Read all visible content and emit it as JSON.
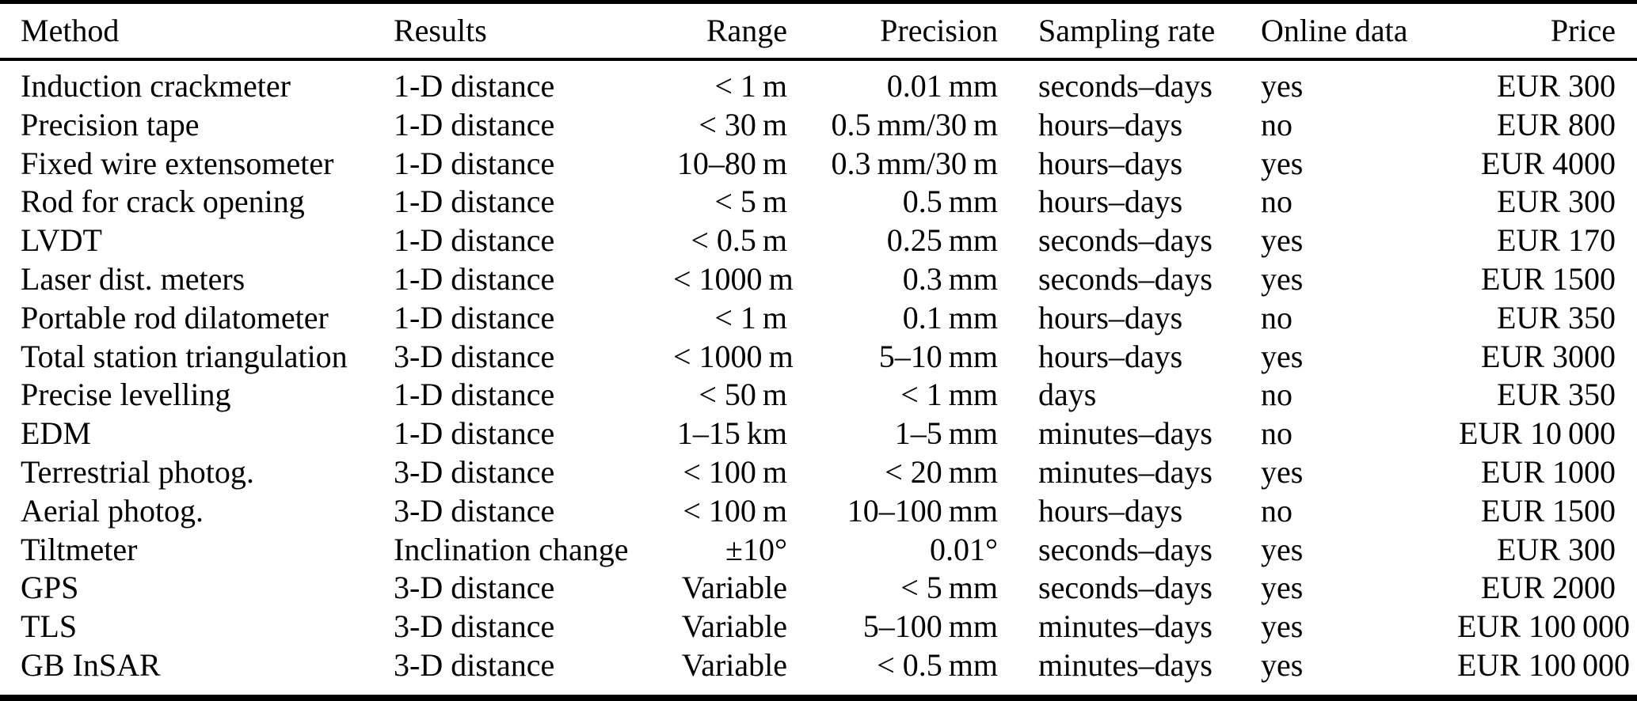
{
  "colors": {
    "text": "#000000",
    "background": "#ffffff",
    "rule": "#000000"
  },
  "table": {
    "columns": [
      {
        "id": "method",
        "label": "Method",
        "align": "left"
      },
      {
        "id": "results",
        "label": "Results",
        "align": "left"
      },
      {
        "id": "range",
        "label": "Range",
        "align": "right"
      },
      {
        "id": "precision",
        "label": "Precision",
        "align": "right"
      },
      {
        "id": "sampling_rate",
        "label": "Sampling rate",
        "align": "left"
      },
      {
        "id": "online_data",
        "label": "Online data",
        "align": "left"
      },
      {
        "id": "price",
        "label": "Price",
        "align": "right"
      }
    ],
    "rows": [
      {
        "method": "Induction crackmeter",
        "results": "1-D distance",
        "range": "< 1 m",
        "precision": "0.01 mm",
        "sampling_rate": "seconds–days",
        "online_data": "yes",
        "price": "EUR 300"
      },
      {
        "method": "Precision tape",
        "results": "1-D distance",
        "range": "< 30 m",
        "precision": "0.5 mm/30 m",
        "sampling_rate": "hours–days",
        "online_data": "no",
        "price": "EUR 800"
      },
      {
        "method": "Fixed wire extensometer",
        "results": "1-D distance",
        "range": "10–80 m",
        "precision": "0.3 mm/30 m",
        "sampling_rate": "hours–days",
        "online_data": "yes",
        "price": "EUR 4000"
      },
      {
        "method": "Rod for crack opening",
        "results": "1-D distance",
        "range": "< 5 m",
        "precision": "0.5 mm",
        "sampling_rate": "hours–days",
        "online_data": "no",
        "price": "EUR 300"
      },
      {
        "method": "LVDT",
        "results": "1-D distance",
        "range": "< 0.5 m",
        "precision": "0.25 mm",
        "sampling_rate": "seconds–days",
        "online_data": "yes",
        "price": "EUR 170"
      },
      {
        "method": "Laser dist. meters",
        "results": "1-D distance",
        "range": "< 1000 m",
        "precision": "0.3 mm",
        "sampling_rate": "seconds–days",
        "online_data": "yes",
        "price": "EUR 1500"
      },
      {
        "method": "Portable rod dilatometer",
        "results": "1-D distance",
        "range": "< 1 m",
        "precision": "0.1 mm",
        "sampling_rate": "hours–days",
        "online_data": "no",
        "price": "EUR 350"
      },
      {
        "method": "Total station triangulation",
        "results": "3-D distance",
        "range": "< 1000 m",
        "precision": "5–10 mm",
        "sampling_rate": "hours–days",
        "online_data": "yes",
        "price": "EUR 3000"
      },
      {
        "method": "Precise levelling",
        "results": "1-D distance",
        "range": "< 50 m",
        "precision": "< 1 mm",
        "sampling_rate": "days",
        "online_data": "no",
        "price": "EUR 350"
      },
      {
        "method": "EDM",
        "results": "1-D distance",
        "range": "1–15 km",
        "precision": "1–5 mm",
        "sampling_rate": "minutes–days",
        "online_data": "no",
        "price": "EUR 10 000"
      },
      {
        "method": "Terrestrial photog.",
        "results": "3-D distance",
        "range": "< 100 m",
        "precision": "< 20 mm",
        "sampling_rate": "minutes–days",
        "online_data": "yes",
        "price": "EUR 1000"
      },
      {
        "method": "Aerial photog.",
        "results": "3-D distance",
        "range": "< 100 m",
        "precision": "10–100 mm",
        "sampling_rate": "hours–days",
        "online_data": "no",
        "price": "EUR 1500"
      },
      {
        "method": "Tiltmeter",
        "results": "Inclination change",
        "range": "±10°",
        "precision": "0.01°",
        "sampling_rate": "seconds–days",
        "online_data": "yes",
        "price": "EUR 300"
      },
      {
        "method": "GPS",
        "results": "3-D distance",
        "range": "Variable",
        "precision": "< 5 mm",
        "sampling_rate": "seconds–days",
        "online_data": "yes",
        "price": "EUR 2000"
      },
      {
        "method": "TLS",
        "results": "3-D distance",
        "range": "Variable",
        "precision": "5–100 mm",
        "sampling_rate": "minutes–days",
        "online_data": "yes",
        "price": "EUR 100 000"
      },
      {
        "method": "GB InSAR",
        "results": "3-D distance",
        "range": "Variable",
        "precision": "< 0.5 mm",
        "sampling_rate": "minutes–days",
        "online_data": "yes",
        "price": "EUR 100 000"
      }
    ]
  }
}
